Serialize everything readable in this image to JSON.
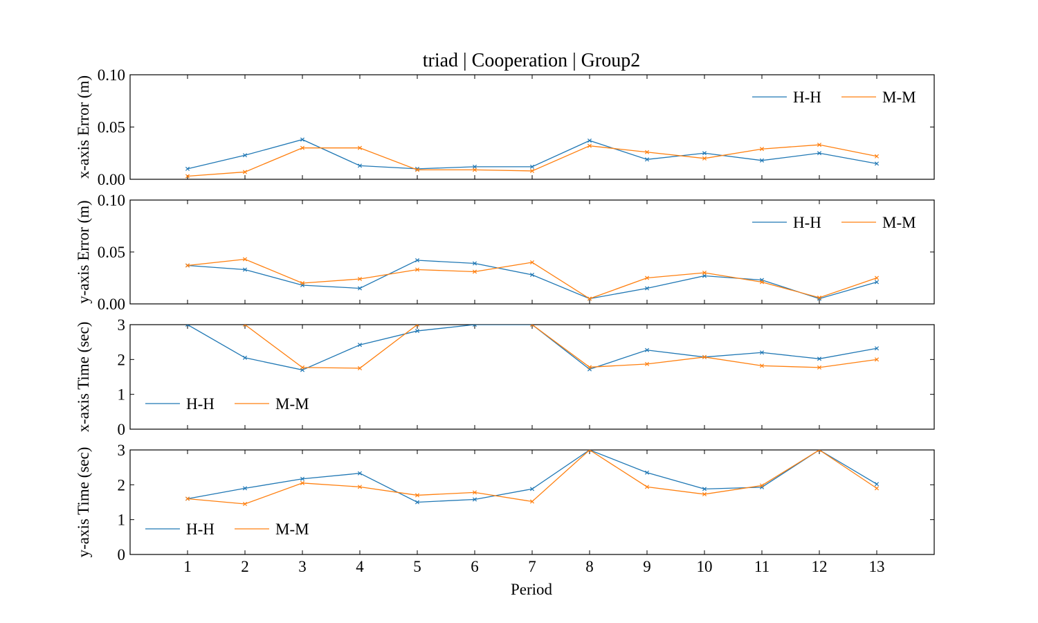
{
  "figure": {
    "title": "triad | Cooperation | Group2",
    "xlabel": "Period"
  },
  "chart_data": [
    {
      "type": "line",
      "ylabel": "x-axis Error (m)",
      "ylim": [
        0,
        0.1
      ],
      "yticks": [
        0.0,
        0.05,
        0.1
      ],
      "ytick_labels": [
        "0.00",
        "0.05",
        "0.10"
      ],
      "xlim": [
        0,
        14
      ],
      "xticks": [
        1,
        2,
        3,
        4,
        5,
        6,
        7,
        8,
        9,
        10,
        11,
        12,
        13
      ],
      "legend_loc": "upper-right",
      "series": [
        {
          "name": "H-H",
          "color": "#1f77b4",
          "marker": "x",
          "x": [
            1,
            2,
            3,
            4,
            5,
            6,
            7,
            8,
            9,
            10,
            11,
            12,
            13
          ],
          "values": [
            0.01,
            0.023,
            0.038,
            0.013,
            0.01,
            0.012,
            0.012,
            0.037,
            0.019,
            0.025,
            0.018,
            0.025,
            0.015
          ]
        },
        {
          "name": "M-M",
          "color": "#ff7f0e",
          "marker": "x",
          "x": [
            1,
            2,
            3,
            4,
            5,
            6,
            7,
            8,
            9,
            10,
            11,
            12,
            13
          ],
          "values": [
            0.003,
            0.007,
            0.03,
            0.03,
            0.009,
            0.009,
            0.008,
            0.032,
            0.026,
            0.02,
            0.029,
            0.033,
            0.022
          ]
        }
      ]
    },
    {
      "type": "line",
      "ylabel": "y-axis Error (m)",
      "ylim": [
        0,
        0.1
      ],
      "yticks": [
        0.0,
        0.05,
        0.1
      ],
      "ytick_labels": [
        "0.00",
        "0.05",
        "0.10"
      ],
      "xlim": [
        0,
        14
      ],
      "xticks": [
        1,
        2,
        3,
        4,
        5,
        6,
        7,
        8,
        9,
        10,
        11,
        12,
        13
      ],
      "legend_loc": "upper-right",
      "series": [
        {
          "name": "H-H",
          "color": "#1f77b4",
          "marker": "x",
          "x": [
            1,
            2,
            3,
            4,
            5,
            6,
            7,
            8,
            9,
            10,
            11,
            12,
            13
          ],
          "values": [
            0.037,
            0.033,
            0.018,
            0.015,
            0.042,
            0.039,
            0.028,
            0.005,
            0.015,
            0.027,
            0.023,
            0.005,
            0.021
          ]
        },
        {
          "name": "M-M",
          "color": "#ff7f0e",
          "marker": "x",
          "x": [
            1,
            2,
            3,
            4,
            5,
            6,
            7,
            8,
            9,
            10,
            11,
            12,
            13
          ],
          "values": [
            0.037,
            0.043,
            0.02,
            0.024,
            0.033,
            0.031,
            0.04,
            0.005,
            0.025,
            0.03,
            0.021,
            0.006,
            0.025
          ]
        }
      ]
    },
    {
      "type": "line",
      "ylabel": "x-axis Time (sec)",
      "ylim": [
        0,
        3
      ],
      "yticks": [
        0,
        1,
        2,
        3
      ],
      "ytick_labels": [
        "0",
        "1",
        "2",
        "3"
      ],
      "xlim": [
        0,
        14
      ],
      "xticks": [
        1,
        2,
        3,
        4,
        5,
        6,
        7,
        8,
        9,
        10,
        11,
        12,
        13
      ],
      "legend_loc": "lower-left",
      "series": [
        {
          "name": "H-H",
          "color": "#1f77b4",
          "marker": "x",
          "x": [
            1,
            2,
            3,
            4,
            5,
            6,
            7,
            8,
            9,
            10,
            11,
            12,
            13
          ],
          "values": [
            3.0,
            2.05,
            1.7,
            2.42,
            2.82,
            3.0,
            3.0,
            1.72,
            2.27,
            2.07,
            2.2,
            2.02,
            2.32
          ]
        },
        {
          "name": "M-M",
          "color": "#ff7f0e",
          "marker": "x",
          "x": [
            1,
            2,
            3,
            4,
            5,
            6,
            7,
            8,
            9,
            10,
            11,
            12,
            13
          ],
          "values": [
            null,
            3.0,
            1.77,
            1.75,
            3.0,
            null,
            3.0,
            1.78,
            1.87,
            2.07,
            1.82,
            1.77,
            2.0
          ]
        }
      ]
    },
    {
      "type": "line",
      "ylabel": "y-axis Time (sec)",
      "ylim": [
        0,
        3
      ],
      "yticks": [
        0,
        1,
        2,
        3
      ],
      "ytick_labels": [
        "0",
        "1",
        "2",
        "3"
      ],
      "xlim": [
        0,
        14
      ],
      "xticks": [
        1,
        2,
        3,
        4,
        5,
        6,
        7,
        8,
        9,
        10,
        11,
        12,
        13
      ],
      "xtick_labels": [
        "1",
        "2",
        "3",
        "4",
        "5",
        "6",
        "7",
        "8",
        "9",
        "10",
        "11",
        "12",
        "13"
      ],
      "legend_loc": "lower-left",
      "series": [
        {
          "name": "H-H",
          "color": "#1f77b4",
          "marker": "x",
          "x": [
            1,
            2,
            3,
            4,
            5,
            6,
            7,
            8,
            9,
            10,
            11,
            12,
            13
          ],
          "values": [
            1.6,
            1.9,
            2.17,
            2.33,
            1.5,
            1.58,
            1.88,
            3.0,
            2.35,
            1.88,
            1.93,
            3.0,
            2.02
          ]
        },
        {
          "name": "M-M",
          "color": "#ff7f0e",
          "marker": "x",
          "x": [
            1,
            2,
            3,
            4,
            5,
            6,
            7,
            8,
            9,
            10,
            11,
            12,
            13
          ],
          "values": [
            1.6,
            1.45,
            2.05,
            1.94,
            1.7,
            1.78,
            1.52,
            3.0,
            1.94,
            1.73,
            1.98,
            3.0,
            1.9
          ]
        }
      ]
    }
  ]
}
